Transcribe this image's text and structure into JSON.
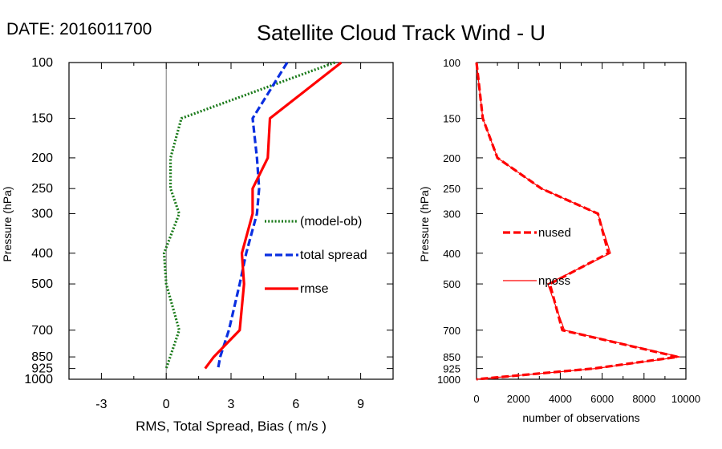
{
  "header": {
    "date_label": "DATE: 2016011700",
    "title": "Satellite Cloud Track Wind - U"
  },
  "chart_data": [
    {
      "type": "line",
      "xlabel": "RMS, Total Spread, Bias ( m/s )",
      "ylabel": "Pressure (hPa)",
      "xlim": [
        -4.5,
        10.5
      ],
      "ylim": [
        1000,
        100
      ],
      "y_scale": "log",
      "x_ticks": [
        -3,
        0,
        3,
        6,
        9
      ],
      "y_ticks": [
        100,
        150,
        200,
        250,
        300,
        400,
        500,
        700,
        850,
        925,
        1000
      ],
      "zero_line": true,
      "legend_position": "center-right",
      "series": [
        {
          "name": "(model-ob)",
          "color": "#1a7a1a",
          "style": "dotted",
          "points": [
            [
              7.8,
              100
            ],
            [
              0.7,
              150
            ],
            [
              0.2,
              200
            ],
            [
              0.2,
              250
            ],
            [
              0.6,
              300
            ],
            [
              -0.1,
              400
            ],
            [
              0.0,
              500
            ],
            [
              0.6,
              700
            ],
            [
              0.0,
              925
            ]
          ]
        },
        {
          "name": "total spread",
          "color": "#0a2fe0",
          "style": "dashed",
          "points": [
            [
              5.6,
              100
            ],
            [
              4.0,
              150
            ],
            [
              4.2,
              200
            ],
            [
              4.3,
              250
            ],
            [
              4.2,
              300
            ],
            [
              3.7,
              400
            ],
            [
              3.4,
              500
            ],
            [
              2.9,
              700
            ],
            [
              2.5,
              850
            ],
            [
              2.4,
              925
            ]
          ]
        },
        {
          "name": "rmse",
          "color": "#ff0000",
          "style": "solid",
          "points": [
            [
              8.1,
              100
            ],
            [
              4.8,
              150
            ],
            [
              4.7,
              200
            ],
            [
              4.0,
              250
            ],
            [
              4.0,
              300
            ],
            [
              3.5,
              400
            ],
            [
              3.6,
              500
            ],
            [
              3.4,
              700
            ],
            [
              2.2,
              850
            ],
            [
              1.8,
              925
            ]
          ]
        }
      ]
    },
    {
      "type": "line",
      "xlabel": "number of observations",
      "ylabel": "Pressure (hPa)",
      "xlim": [
        0,
        10000
      ],
      "ylim": [
        1000,
        100
      ],
      "y_scale": "log",
      "x_ticks": [
        0,
        2000,
        4000,
        6000,
        8000,
        10000
      ],
      "y_ticks": [
        100,
        150,
        200,
        250,
        300,
        400,
        500,
        700,
        850,
        925,
        1000
      ],
      "legend_position": "center-left",
      "series": [
        {
          "name": "nused",
          "color": "#ff0000",
          "style": "dashed",
          "points": [
            [
              0,
              100
            ],
            [
              300,
              150
            ],
            [
              1000,
              200
            ],
            [
              3100,
              250
            ],
            [
              5800,
              300
            ],
            [
              6300,
              400
            ],
            [
              3500,
              500
            ],
            [
              4100,
              700
            ],
            [
              9600,
              850
            ],
            [
              5600,
              925
            ],
            [
              0,
              1000
            ]
          ]
        },
        {
          "name": "nposs",
          "color": "#ff0000",
          "style": "thin",
          "points": [
            [
              0,
              100
            ],
            [
              300,
              150
            ],
            [
              1000,
              200
            ],
            [
              3100,
              250
            ],
            [
              5800,
              300
            ],
            [
              6400,
              400
            ],
            [
              3400,
              500
            ],
            [
              4200,
              700
            ],
            [
              9700,
              850
            ],
            [
              5700,
              925
            ],
            [
              0,
              1000
            ]
          ]
        }
      ]
    }
  ]
}
